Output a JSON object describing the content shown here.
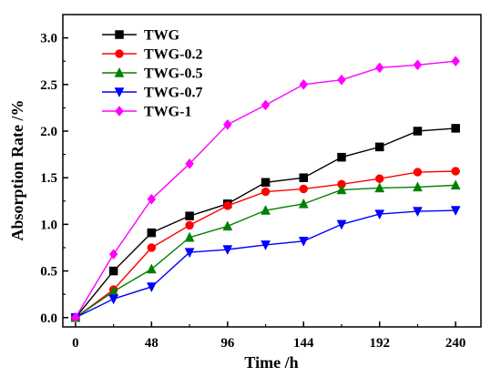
{
  "chart_data": {
    "type": "line",
    "title": "",
    "xlabel": "Time /h",
    "ylabel": "Absorption Rate /%",
    "xlim": [
      -8,
      256
    ],
    "ylim": [
      -0.1,
      3.25
    ],
    "xticks": [
      0,
      48,
      96,
      144,
      192,
      240
    ],
    "yticks": [
      0.0,
      0.5,
      1.0,
      1.5,
      2.0,
      2.5,
      3.0
    ],
    "ytick_labels": [
      "0.0",
      "0.5",
      "1.0",
      "1.5",
      "2.0",
      "2.5",
      "3.0"
    ],
    "grid": false,
    "legend_position": "top-left",
    "x": [
      0,
      24,
      48,
      72,
      96,
      120,
      144,
      168,
      192,
      216,
      240
    ],
    "series": [
      {
        "name": "TWG",
        "color": "#000000",
        "marker": "square",
        "values": [
          0,
          0.5,
          0.91,
          1.09,
          1.22,
          1.45,
          1.5,
          1.72,
          1.83,
          2.0,
          2.03
        ]
      },
      {
        "name": "TWG-0.2",
        "color": "#ff0000",
        "marker": "circle",
        "values": [
          0,
          0.3,
          0.75,
          0.99,
          1.2,
          1.35,
          1.38,
          1.43,
          1.49,
          1.56,
          1.57
        ]
      },
      {
        "name": "TWG-0.5",
        "color": "#008000",
        "marker": "triangle-up",
        "values": [
          0,
          0.28,
          0.52,
          0.86,
          0.98,
          1.15,
          1.22,
          1.37,
          1.39,
          1.4,
          1.42
        ]
      },
      {
        "name": "TWG-0.7",
        "color": "#0000ff",
        "marker": "triangle-down",
        "values": [
          0,
          0.2,
          0.33,
          0.7,
          0.73,
          0.78,
          0.82,
          1.0,
          1.11,
          1.14,
          1.15
        ]
      },
      {
        "name": "TWG-1",
        "color": "#ff00ff",
        "marker": "diamond",
        "values": [
          0,
          0.68,
          1.27,
          1.65,
          2.07,
          2.28,
          2.5,
          2.55,
          2.68,
          2.71,
          2.75
        ]
      }
    ]
  }
}
